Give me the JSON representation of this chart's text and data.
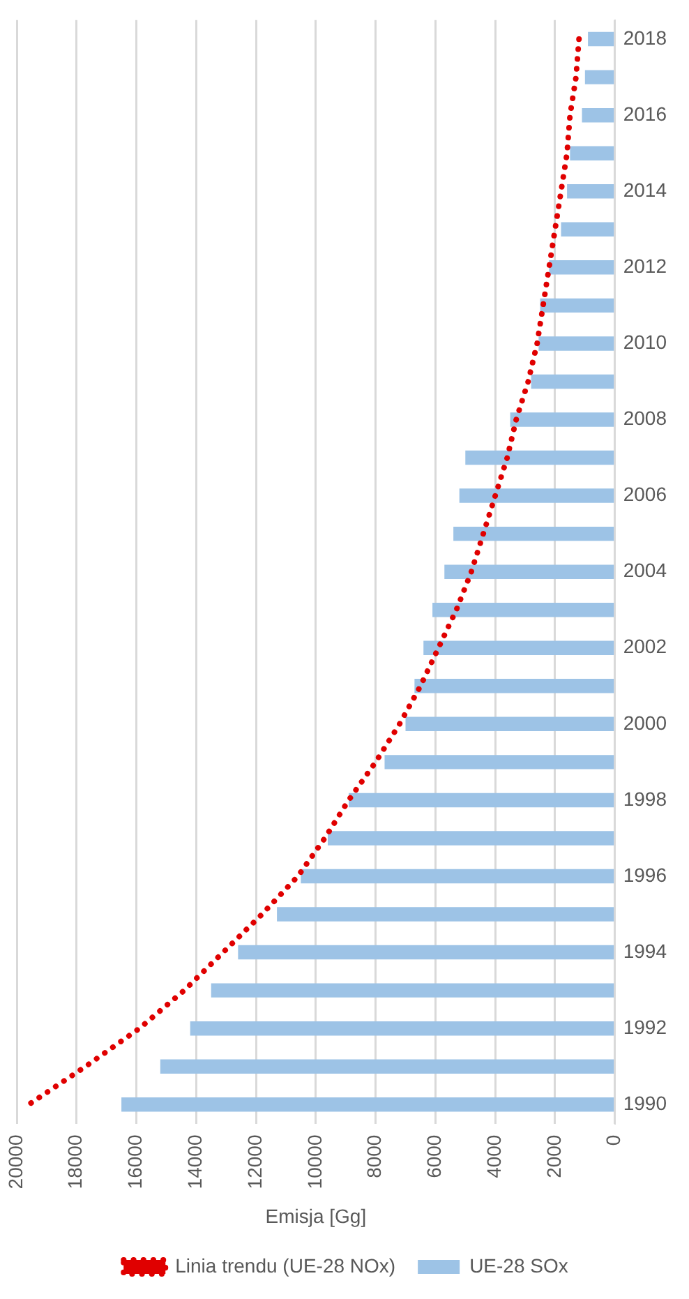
{
  "chart_data": {
    "type": "bar",
    "orientation": "horizontal",
    "xlabel": "Emisja [Gg]",
    "categories": [
      "2018",
      null,
      "2016",
      null,
      "2014",
      null,
      "2012",
      null,
      "2010",
      null,
      "2008",
      null,
      "2006",
      null,
      "2004",
      null,
      "2002",
      null,
      "2000",
      null,
      "1998",
      null,
      "1996",
      null,
      "1994",
      null,
      "1992",
      null,
      "1990"
    ],
    "series": [
      {
        "name": "UE-28 SOx",
        "color": "#9dc3e6",
        "values": [
          900,
          1000,
          1100,
          1500,
          1600,
          1800,
          2200,
          2500,
          2550,
          2800,
          3500,
          5000,
          5200,
          5400,
          5700,
          6100,
          6400,
          6700,
          7000,
          7700,
          8900,
          9600,
          10500,
          11300,
          12600,
          13500,
          14200,
          15200,
          16500
        ]
      },
      {
        "name": "Linia trendu (UE-28 NOx)",
        "type": "line",
        "color": "#e00000",
        "line_style": "dotted",
        "values": [
          1200,
          1300,
          1500,
          1600,
          1800,
          2000,
          2200,
          2400,
          2600,
          2900,
          3300,
          3600,
          4000,
          4400,
          4800,
          5300,
          5900,
          6500,
          7200,
          8000,
          8900,
          9700,
          10600,
          11800,
          13100,
          14400,
          15900,
          17700,
          19600
        ]
      }
    ],
    "xlim": [
      20000,
      0
    ],
    "xticks": [
      20000,
      18000,
      16000,
      14000,
      12000,
      10000,
      8000,
      6000,
      4000,
      2000,
      0
    ],
    "grid": "x",
    "legend": "bottom",
    "marker": "none"
  }
}
